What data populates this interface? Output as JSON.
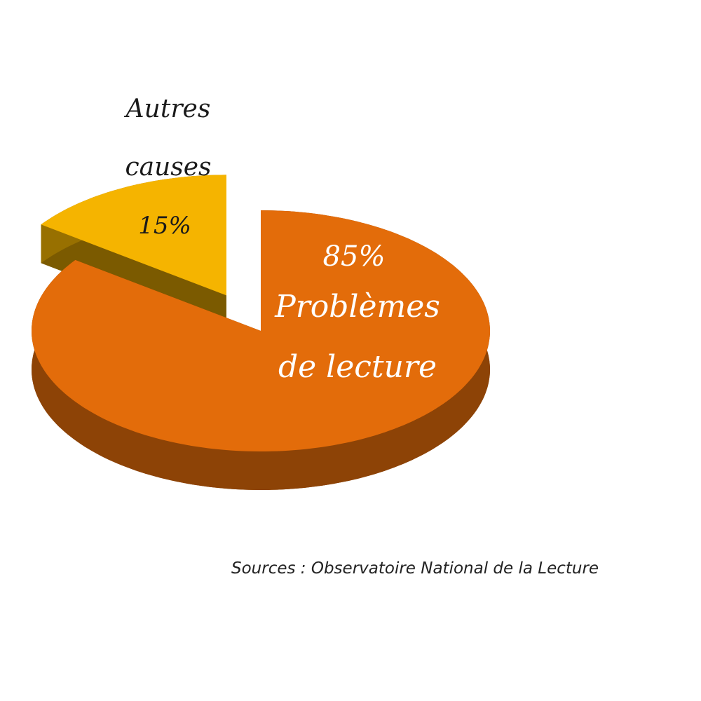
{
  "chart_data": {
    "type": "pie",
    "categories": [
      "Problèmes de lecture",
      "Autres causes"
    ],
    "values": [
      85,
      15
    ],
    "value_labels": [
      "85%",
      "15%"
    ],
    "colors": [
      "#e36c0a",
      "#f5b400"
    ],
    "source": "Sources : Observatoire National de la Lecture"
  }
}
